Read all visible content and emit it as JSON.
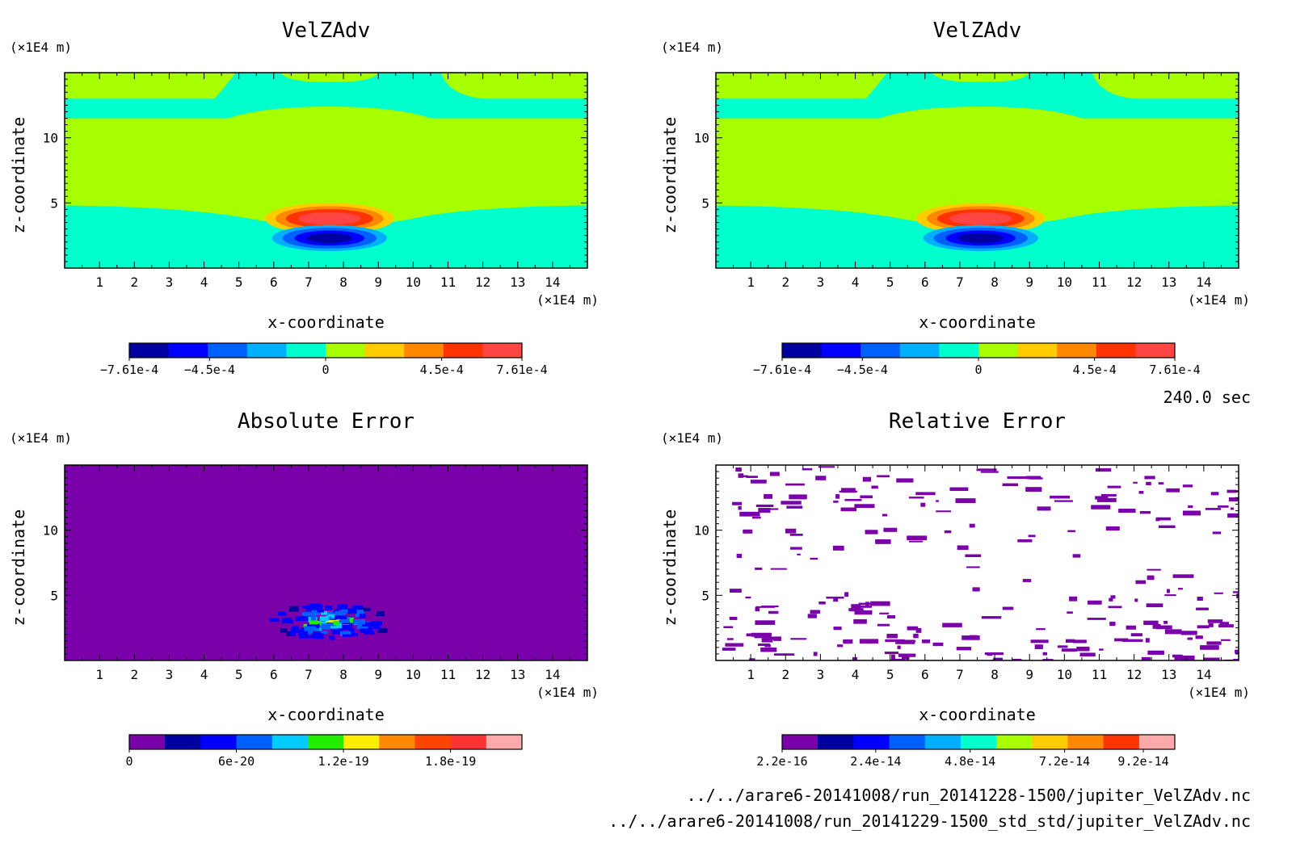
{
  "figure": {
    "time_label": "240.0 sec",
    "files": [
      "../../arare6-20141008/run_20141228-1500/jupiter_VelZAdv.nc",
      "../../arare6-20141008/run_20141229-1500_std_std/jupiter_VelZAdv.nc"
    ]
  },
  "chart_data": [
    {
      "type": "heatmap",
      "title": "VelZAdv",
      "xlabel": "x-coordinate",
      "ylabel": "z-coordinate",
      "x_unit": "(x1E4 m)",
      "y_unit": "(x1E4 m)",
      "xlim": [
        0,
        15
      ],
      "ylim": [
        0,
        15
      ],
      "xticks": [
        1,
        2,
        3,
        4,
        5,
        6,
        7,
        8,
        9,
        10,
        11,
        12,
        13,
        14
      ],
      "yticks": [
        5,
        10
      ],
      "colorbar": {
        "levels": 10,
        "labels": [
          "-7.61e-4",
          "-4.5e-4",
          "0",
          "4.5e-4",
          "7.61e-4"
        ],
        "label_values": [
          -0.000761,
          -0.00045,
          0,
          0.00045,
          0.000761
        ],
        "range": [
          -0.000761,
          0.000761
        ],
        "colors": [
          "#0000a0",
          "#0000ff",
          "#0060ff",
          "#00b0ff",
          "#00ffcc",
          "#a8ff00",
          "#ffcc00",
          "#ff8800",
          "#ff3300",
          "#ff4444"
        ]
      },
      "features": {
        "background_color": "#a8ff00",
        "band_color": "#00ffcc",
        "positive_core_center": [
          7.6,
          3.8
        ],
        "negative_core_center": [
          7.6,
          2.3
        ]
      }
    },
    {
      "type": "heatmap",
      "title": "VelZAdv",
      "xlabel": "x-coordinate",
      "ylabel": "z-coordinate",
      "x_unit": "(x1E4 m)",
      "y_unit": "(x1E4 m)",
      "xlim": [
        0,
        15
      ],
      "ylim": [
        0,
        15
      ],
      "xticks": [
        1,
        2,
        3,
        4,
        5,
        6,
        7,
        8,
        9,
        10,
        11,
        12,
        13,
        14
      ],
      "yticks": [
        5,
        10
      ],
      "colorbar": {
        "levels": 10,
        "labels": [
          "-7.61e-4",
          "-4.5e-4",
          "0",
          "4.5e-4",
          "7.61e-4"
        ],
        "label_values": [
          -0.000761,
          -0.00045,
          0,
          0.00045,
          0.000761
        ],
        "range": [
          -0.000761,
          0.000761
        ],
        "colors": [
          "#0000a0",
          "#0000ff",
          "#0060ff",
          "#00b0ff",
          "#00ffcc",
          "#a8ff00",
          "#ffcc00",
          "#ff8800",
          "#ff3300",
          "#ff4444"
        ]
      },
      "features": {
        "background_color": "#a8ff00",
        "band_color": "#00ffcc",
        "positive_core_center": [
          7.6,
          3.8
        ],
        "negative_core_center": [
          7.6,
          2.3
        ]
      }
    },
    {
      "type": "heatmap",
      "title": "Absolute Error",
      "xlabel": "x-coordinate",
      "ylabel": "z-coordinate",
      "x_unit": "(x1E4 m)",
      "y_unit": "(x1E4 m)",
      "xlim": [
        0,
        15
      ],
      "ylim": [
        0,
        15
      ],
      "xticks": [
        1,
        2,
        3,
        4,
        5,
        6,
        7,
        8,
        9,
        10,
        11,
        12,
        13,
        14
      ],
      "yticks": [
        5,
        10
      ],
      "colorbar": {
        "levels": 11,
        "labels": [
          "0",
          "6e-20",
          "1.2e-19",
          "1.8e-19"
        ],
        "label_values": [
          0,
          6e-20,
          1.2e-19,
          1.8e-19
        ],
        "range": [
          0,
          2.2e-19
        ],
        "colors": [
          "#7a00aa",
          "#0000a0",
          "#0000ff",
          "#0060ff",
          "#00ccff",
          "#22ee00",
          "#ffee00",
          "#ff8800",
          "#ff4400",
          "#ff3333",
          "#ffaaaa"
        ]
      },
      "features": {
        "background_color": "#7a00aa",
        "error_cluster_center": [
          7.6,
          3.0
        ]
      }
    },
    {
      "type": "heatmap",
      "title": "Relative Error",
      "xlabel": "x-coordinate",
      "ylabel": "z-coordinate",
      "x_unit": "(x1E4 m)",
      "y_unit": "(x1E4 m)",
      "xlim": [
        0,
        15
      ],
      "ylim": [
        0,
        15
      ],
      "xticks": [
        1,
        2,
        3,
        4,
        5,
        6,
        7,
        8,
        9,
        10,
        11,
        12,
        13,
        14
      ],
      "yticks": [
        5,
        10
      ],
      "colorbar": {
        "levels": 11,
        "labels": [
          "2.2e-16",
          "2.4e-14",
          "4.8e-14",
          "7.2e-14",
          "9.2e-14"
        ],
        "label_values": [
          2.2e-16,
          2.4e-14,
          4.8e-14,
          7.2e-14,
          9.2e-14
        ],
        "range": [
          2.2e-16,
          1e-13
        ],
        "colors": [
          "#7a00aa",
          "#0000a0",
          "#0000ff",
          "#0060ff",
          "#00b0ff",
          "#00ffcc",
          "#a8ff00",
          "#ffcc00",
          "#ff8800",
          "#ff3300",
          "#ffaaaa"
        ]
      },
      "features": {
        "background_color": "#ffffff",
        "speckle_color": "#7a00aa"
      }
    }
  ]
}
